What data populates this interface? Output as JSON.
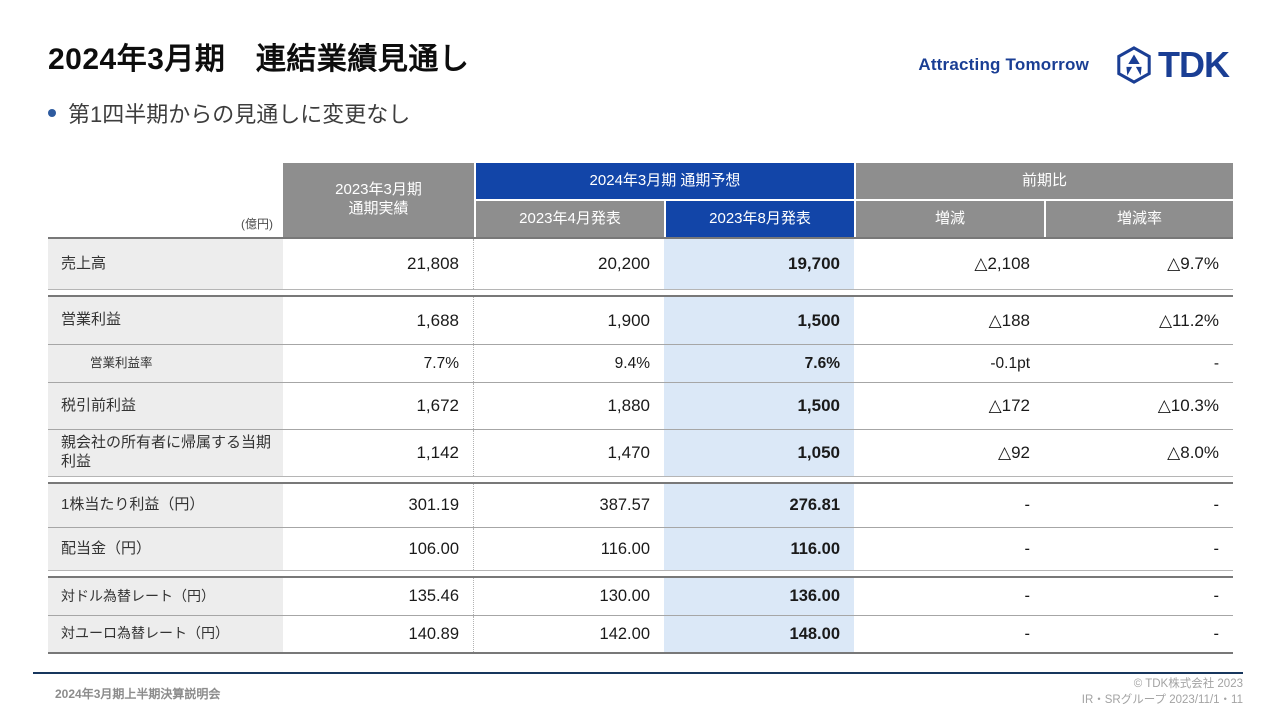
{
  "colors": {
    "brand_blue": "#1a3e94",
    "header_blue": "#1245a8",
    "header_gray": "#8e8e8e",
    "highlight_blue": "#dbe8f7",
    "label_gray": "#ededed",
    "footer_navy": "#17365d"
  },
  "header": {
    "title": "2024年3月期　連結業績見通し",
    "tagline": "Attracting Tomorrow",
    "logo_text": "TDK"
  },
  "subtitle": {
    "text": "第1四半期からの見通しに変更なし"
  },
  "table": {
    "unit_label": "(億円)",
    "actual_header_line1": "2023年3月期",
    "actual_header_line2": "通期実績",
    "forecast_header": "2024年3月期 通期予想",
    "forecast_sub_apr": "2023年4月発表",
    "forecast_sub_aug": "2023年8月発表",
    "yoy_header": "前期比",
    "yoy_sub_change": "増減",
    "yoy_sub_rate": "増減率",
    "groups": [
      {
        "rows": [
          {
            "label": "売上高",
            "sub": false,
            "values": [
              "21,808",
              "20,200",
              "19,700",
              "△2,108",
              "△9.7%"
            ]
          }
        ]
      },
      {
        "rows": [
          {
            "label": "営業利益",
            "sub": false,
            "values": [
              "1,688",
              "1,900",
              "1,500",
              "△188",
              "△11.2%"
            ]
          },
          {
            "label": "営業利益率",
            "sub": true,
            "values": [
              "7.7%",
              "9.4%",
              "7.6%",
              "-0.1pt",
              "-"
            ]
          },
          {
            "label": "税引前利益",
            "sub": false,
            "values": [
              "1,672",
              "1,880",
              "1,500",
              "△172",
              "△10.3%"
            ]
          },
          {
            "label": "親会社の所有者に帰属する当期利益",
            "sub": false,
            "values": [
              "1,142",
              "1,470",
              "1,050",
              "△92",
              "△8.0%"
            ]
          }
        ]
      },
      {
        "rows": [
          {
            "label": "1株当たり利益（円）",
            "sub": false,
            "values": [
              "301.19",
              "387.57",
              "276.81",
              "-",
              "-"
            ]
          },
          {
            "label": "配当金（円）",
            "sub": false,
            "values": [
              "106.00",
              "116.00",
              "116.00",
              "-",
              "-"
            ]
          }
        ]
      },
      {
        "rows": [
          {
            "label": "対ドル為替レート（円）",
            "sub": false,
            "values": [
              "135.46",
              "130.00",
              "136.00",
              "-",
              "-"
            ]
          },
          {
            "label": "対ユーロ為替レート（円）",
            "sub": false,
            "values": [
              "140.89",
              "142.00",
              "148.00",
              "-",
              "-"
            ]
          }
        ]
      }
    ]
  },
  "footer": {
    "left": "2024年3月期上半期決算説明会",
    "copyright": "© TDK株式会社 2023",
    "group_line": "IR・SRグループ  2023/11/1・11"
  }
}
